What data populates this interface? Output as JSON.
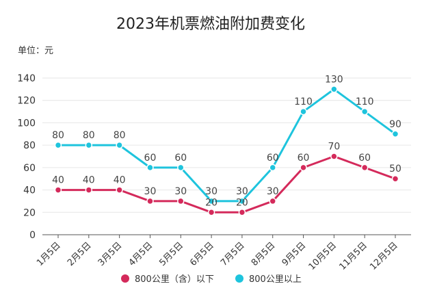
{
  "chart_data": {
    "type": "line",
    "title": "2023年机票燃油附加费变化",
    "unit_label": "单位：元",
    "xlabel": "",
    "ylabel": "",
    "categories": [
      "1月5日",
      "2月5日",
      "3月5日",
      "4月5日",
      "5月5日",
      "6月5日",
      "7月5日",
      "8月5日",
      "9月5日",
      "10月5日",
      "11月5日",
      "12月5日"
    ],
    "ylim": [
      0,
      140
    ],
    "yticks": [
      0,
      20,
      40,
      60,
      80,
      100,
      120,
      140
    ],
    "grid": true,
    "legend_position": "bottom",
    "series": [
      {
        "name": "800公里（含）以下",
        "color": "#d42a5b",
        "values": [
          40,
          40,
          40,
          30,
          30,
          20,
          20,
          30,
          60,
          70,
          60,
          50
        ]
      },
      {
        "name": "800公里以上",
        "color": "#1ec4dd",
        "values": [
          80,
          80,
          80,
          60,
          60,
          30,
          30,
          60,
          110,
          130,
          110,
          90
        ]
      }
    ]
  }
}
